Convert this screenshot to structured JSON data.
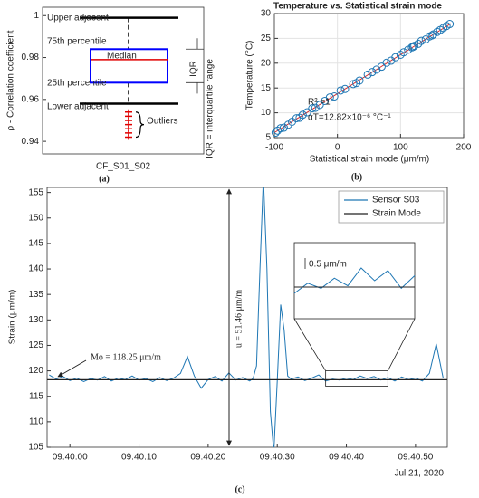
{
  "chart_data": [
    {
      "type": "box",
      "ylabel": "ρ - Correlation coefficient",
      "categories": [
        "CF_S01_S02"
      ],
      "ylim": [
        0.934,
        1.004
      ],
      "yticks": [
        0.94,
        0.96,
        0.98,
        1
      ],
      "boxes": [
        {
          "whislo": 0.958,
          "q1": 0.968,
          "med": 0.979,
          "q3": 0.984,
          "whishi": 0.999,
          "outliers": [
            0.954,
            0.952,
            0.95,
            0.948,
            0.946,
            0.944,
            0.942
          ]
        }
      ],
      "box_color": "#0000ff",
      "median_color": "#e00000",
      "outlier_color": "#e00000",
      "annotations": [
        "Upper adjacent",
        "75th percentile",
        "Median",
        "25th percentile",
        "Lower adjacent",
        "Outliers",
        "IQR",
        "IQR = interquartile range"
      ],
      "panel": "(a)"
    },
    {
      "type": "scatter",
      "title": "Temperature vs. Statistical strain mode",
      "xlabel": "Statistical strain mode (μm/m)",
      "ylabel": "Temperature (°C)",
      "xlim": [
        -100,
        200
      ],
      "xticks": [
        -100,
        0,
        100,
        200
      ],
      "ylim": [
        5,
        30
      ],
      "yticks": [
        5,
        10,
        15,
        20,
        25,
        30
      ],
      "x": [
        -98,
        -95,
        -90,
        -85,
        -78,
        -72,
        -65,
        -60,
        -55,
        -48,
        -40,
        -35,
        -28,
        -20,
        -12,
        -5,
        5,
        12,
        25,
        30,
        35,
        48,
        55,
        62,
        70,
        78,
        85,
        92,
        100,
        105,
        112,
        118,
        120,
        122,
        128,
        133,
        140,
        146,
        150,
        152,
        158,
        163,
        168,
        173,
        178
      ],
      "values": [
        6.0,
        6.4,
        6.9,
        7.0,
        7.6,
        8.2,
        8.9,
        9.0,
        9.6,
        10.1,
        10.9,
        11.0,
        11.6,
        12.4,
        13.1,
        13.3,
        14.5,
        14.8,
        15.8,
        16.0,
        16.5,
        17.7,
        18.2,
        18.7,
        19.3,
        20.1,
        20.5,
        21.2,
        21.7,
        22.2,
        22.7,
        23.2,
        23.3,
        23.5,
        23.9,
        24.5,
        24.8,
        25.4,
        25.6,
        25.8,
        26.3,
        26.7,
        27.1,
        27.5,
        27.9
      ],
      "color": "#1f77b4",
      "fit": {
        "x": [
          -100,
          180
        ],
        "values": [
          6.0,
          28.0
        ],
        "color": "#d62728"
      },
      "annotations": [
        "R² =1",
        "αT=12.82×10⁻⁶ °C⁻¹"
      ],
      "grid": true,
      "panel": "(b)"
    },
    {
      "type": "line",
      "ylabel": "Strain (μm/m)",
      "date": "Jul 21, 2020",
      "xlim": [
        -3.3,
        54.6
      ],
      "xticks": [
        {
          "value": 0,
          "label": "09:40:00"
        },
        {
          "value": 10,
          "label": "09:40:10"
        },
        {
          "value": 20,
          "label": "09:40:20"
        },
        {
          "value": 30,
          "label": "09:40:30"
        },
        {
          "value": 40,
          "label": "09:40:40"
        },
        {
          "value": 50,
          "label": "09:40:50"
        }
      ],
      "ylim": [
        105,
        156
      ],
      "yticks": [
        105,
        110,
        115,
        120,
        125,
        130,
        135,
        140,
        145,
        150,
        155
      ],
      "series": [
        {
          "name": "Sensor S03",
          "color": "#1f77b4",
          "x": [
            -3,
            -2,
            -1,
            0,
            1,
            2,
            3,
            4,
            5,
            6,
            7,
            8,
            9,
            10,
            11,
            12,
            13,
            14,
            15,
            16,
            17,
            18,
            19,
            20,
            21,
            22,
            23,
            24,
            25,
            26,
            26.5,
            27,
            27.5,
            28,
            28.5,
            29,
            29.5,
            30,
            30.5,
            31,
            31.5,
            32,
            33,
            34,
            35,
            36,
            37,
            38,
            39,
            40,
            41,
            42,
            43,
            44,
            45,
            46,
            47,
            48,
            49,
            50,
            51,
            52,
            53,
            54
          ],
          "values": [
            119.2,
            118.4,
            118.9,
            118.1,
            118.6,
            117.9,
            118.5,
            118.2,
            118.9,
            118.0,
            118.6,
            118.3,
            119.0,
            118.2,
            118.5,
            117.9,
            118.7,
            118.1,
            118.6,
            119.5,
            122.8,
            119.0,
            116.6,
            118.3,
            118.9,
            118.0,
            119.6,
            118.2,
            118.7,
            118.0,
            118.5,
            121,
            140,
            158,
            140,
            112,
            104,
            118,
            133,
            128,
            119,
            118.4,
            118.8,
            118.1,
            118.6,
            119.2,
            118.0,
            118.4,
            118.2,
            118.6,
            118.3,
            119.0,
            118.5,
            118.9,
            118.2,
            118.7,
            118.0,
            118.8,
            118.3,
            118.6,
            118.0,
            119.5,
            125.3,
            118.6
          ]
        },
        {
          "name": "Strain Mode",
          "color": "#222222",
          "x": [
            -3.3,
            54.6
          ],
          "values": [
            118.25,
            118.25
          ]
        }
      ],
      "annotations": [
        "Mo = 118.25 μm/m",
        "u = 51.46 μm/m"
      ],
      "inset": {
        "xlim": [
          37,
          46
        ],
        "ylim": [
          117,
          120
        ],
        "scale_label": "0.5 μm/m"
      },
      "legend": "upper right",
      "panel": "(c)"
    }
  ]
}
